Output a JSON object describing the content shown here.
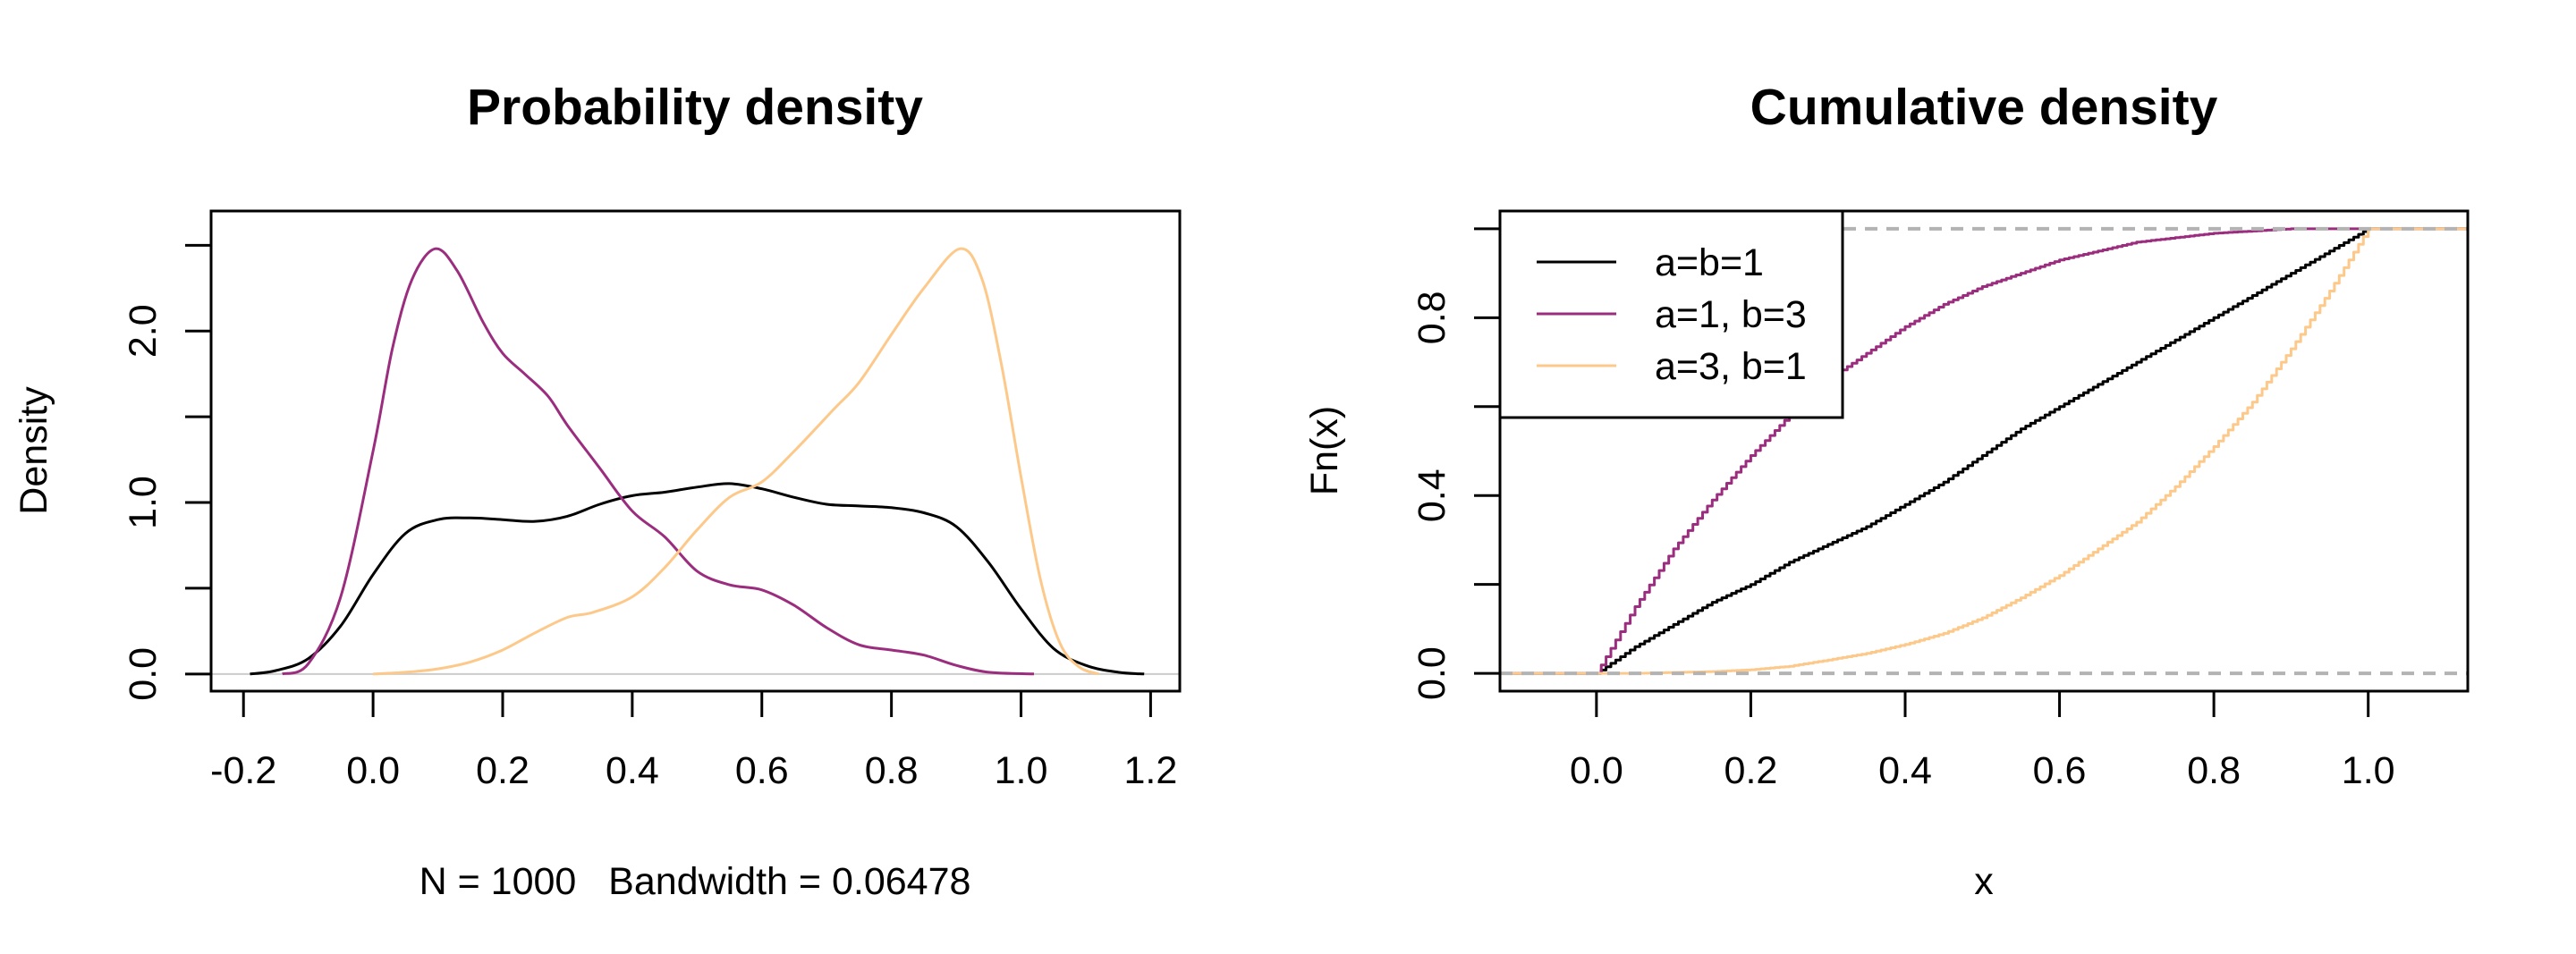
{
  "chart_data": [
    {
      "type": "line",
      "title": "Probability density",
      "xlabel": "N = 1000   Bandwidth = 0.06478",
      "ylabel": "Density",
      "xlim": [
        -0.25,
        1.245
      ],
      "ylim": [
        -0.1,
        2.7
      ],
      "xticks": [
        -0.2,
        0.0,
        0.2,
        0.4,
        0.6,
        0.8,
        1.0,
        1.2
      ],
      "xtick_labels": [
        "-0.2",
        "0.0",
        "0.2",
        "0.4",
        "0.6",
        "0.8",
        "1.0",
        "1.2"
      ],
      "yticks": [
        0.0,
        0.5,
        1.0,
        1.5,
        2.0,
        2.5
      ],
      "ytick_labels": [
        "0.0",
        "",
        "1.0",
        "",
        "2.0",
        ""
      ],
      "zero_line": {
        "y": 0,
        "color": "#cccccc"
      },
      "grid": false,
      "legend": null,
      "series": [
        {
          "name": "a=b=1",
          "color": "#000000",
          "x": [
            -0.19,
            -0.15,
            -0.1,
            -0.05,
            0.0,
            0.05,
            0.1,
            0.15,
            0.2,
            0.25,
            0.3,
            0.35,
            0.4,
            0.45,
            0.5,
            0.55,
            0.6,
            0.65,
            0.7,
            0.75,
            0.8,
            0.85,
            0.9,
            0.95,
            1.0,
            1.05,
            1.1,
            1.15,
            1.19
          ],
          "y": [
            0.0,
            0.02,
            0.09,
            0.28,
            0.58,
            0.82,
            0.9,
            0.91,
            0.9,
            0.89,
            0.92,
            0.99,
            1.04,
            1.06,
            1.09,
            1.11,
            1.08,
            1.03,
            0.99,
            0.98,
            0.97,
            0.94,
            0.86,
            0.65,
            0.38,
            0.15,
            0.05,
            0.01,
            0.0
          ]
        },
        {
          "name": "a=1, b=3",
          "color": "#9b2d7f",
          "x": [
            -0.14,
            -0.1,
            -0.05,
            0.0,
            0.03,
            0.06,
            0.096,
            0.13,
            0.17,
            0.2,
            0.234,
            0.27,
            0.3,
            0.35,
            0.4,
            0.45,
            0.5,
            0.55,
            0.6,
            0.65,
            0.7,
            0.75,
            0.8,
            0.85,
            0.9,
            0.95,
            1.02
          ],
          "y": [
            0.0,
            0.06,
            0.45,
            1.3,
            1.9,
            2.3,
            2.48,
            2.35,
            2.05,
            1.87,
            1.75,
            1.62,
            1.45,
            1.2,
            0.95,
            0.8,
            0.6,
            0.52,
            0.49,
            0.4,
            0.27,
            0.17,
            0.14,
            0.11,
            0.05,
            0.01,
            0.0
          ]
        },
        {
          "name": "a=3, b=1",
          "color": "#fdc98a",
          "x": [
            0.0,
            0.05,
            0.1,
            0.15,
            0.2,
            0.25,
            0.3,
            0.34,
            0.4,
            0.45,
            0.5,
            0.55,
            0.6,
            0.65,
            0.71,
            0.75,
            0.8,
            0.85,
            0.906,
            0.94,
            0.97,
            1.0,
            1.03,
            1.06,
            1.09,
            1.12
          ],
          "y": [
            0.0,
            0.01,
            0.03,
            0.07,
            0.14,
            0.24,
            0.33,
            0.36,
            0.45,
            0.62,
            0.84,
            1.03,
            1.12,
            1.3,
            1.54,
            1.7,
            1.98,
            2.25,
            2.48,
            2.3,
            1.8,
            1.15,
            0.55,
            0.18,
            0.04,
            0.0
          ]
        }
      ]
    },
    {
      "type": "line",
      "title": "Cumulative density",
      "xlabel": "x",
      "ylabel": "Fn(x)",
      "xlim": [
        -0.125,
        1.129
      ],
      "ylim": [
        -0.04,
        1.04
      ],
      "xticks": [
        0.0,
        0.2,
        0.4,
        0.6,
        0.8,
        1.0
      ],
      "xtick_labels": [
        "0.0",
        "0.2",
        "0.4",
        "0.6",
        "0.8",
        "1.0"
      ],
      "yticks": [
        0.0,
        0.2,
        0.4,
        0.6,
        0.8,
        1.0
      ],
      "ytick_labels": [
        "0.0",
        "",
        "0.4",
        "",
        "0.8",
        ""
      ],
      "reference_lines": [
        {
          "y": 0,
          "color": "#b3b3b3",
          "style": "dashed"
        },
        {
          "y": 1,
          "color": "#b3b3b3",
          "style": "dashed"
        }
      ],
      "grid": false,
      "legend": {
        "position": "top-left",
        "entries": [
          "a=b=1",
          "a=1, b=3",
          "a=3, b=1"
        ]
      },
      "series": [
        {
          "name": "a=b=1",
          "color": "#000000",
          "step": true,
          "x": [
            0.0,
            0.05,
            0.1,
            0.15,
            0.2,
            0.25,
            0.3,
            0.35,
            0.4,
            0.45,
            0.5,
            0.55,
            0.6,
            0.65,
            0.7,
            0.75,
            0.8,
            0.85,
            0.9,
            0.95,
            1.0
          ],
          "y": [
            0.0,
            0.06,
            0.11,
            0.16,
            0.2,
            0.25,
            0.29,
            0.33,
            0.38,
            0.43,
            0.49,
            0.55,
            0.6,
            0.65,
            0.7,
            0.75,
            0.8,
            0.85,
            0.9,
            0.95,
            1.0
          ]
        },
        {
          "name": "a=1, b=3",
          "color": "#9b2d7f",
          "step": true,
          "x": [
            0.0,
            0.05,
            0.1,
            0.15,
            0.2,
            0.25,
            0.3,
            0.35,
            0.4,
            0.45,
            0.5,
            0.55,
            0.6,
            0.65,
            0.7,
            0.75,
            0.8,
            0.85,
            0.9,
            0.95,
            1.0
          ],
          "y": [
            0.0,
            0.15,
            0.28,
            0.39,
            0.49,
            0.58,
            0.66,
            0.72,
            0.78,
            0.83,
            0.87,
            0.9,
            0.93,
            0.95,
            0.97,
            0.98,
            0.99,
            0.995,
            1.0,
            1.0,
            1.0
          ]
        },
        {
          "name": "a=3, b=1",
          "color": "#fdc98a",
          "step": true,
          "x": [
            0.0,
            0.05,
            0.1,
            0.15,
            0.2,
            0.25,
            0.3,
            0.35,
            0.4,
            0.45,
            0.5,
            0.55,
            0.6,
            0.65,
            0.7,
            0.75,
            0.8,
            0.85,
            0.9,
            0.95,
            1.0
          ],
          "y": [
            0.0,
            0.0,
            0.002,
            0.004,
            0.008,
            0.016,
            0.03,
            0.045,
            0.065,
            0.09,
            0.125,
            0.17,
            0.22,
            0.28,
            0.34,
            0.42,
            0.51,
            0.61,
            0.73,
            0.86,
            1.0
          ]
        }
      ]
    }
  ]
}
